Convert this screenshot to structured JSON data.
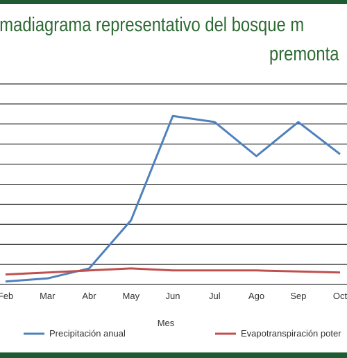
{
  "title": {
    "line1": "imadiagrama representativo del bosque m",
    "line2": "premonta"
  },
  "chart_data": {
    "type": "line",
    "categories": [
      "Feb",
      "Mar",
      "Abr",
      "May",
      "Jun",
      "Jul",
      "Ago",
      "Sep",
      "Oct"
    ],
    "xlabel": "Mes",
    "ylabel": "",
    "ylim": [
      0,
      10
    ],
    "grid": true,
    "legend_position": "bottom",
    "series": [
      {
        "name": "Precipitación anual",
        "color": "#4f81bd",
        "values": [
          0.15,
          0.3,
          0.8,
          3.2,
          8.4,
          8.1,
          6.4,
          8.1,
          6.5
        ]
      },
      {
        "name": "Evapotranspiración poter",
        "color": "#c0504d",
        "values": [
          0.5,
          0.6,
          0.7,
          0.8,
          0.7,
          0.7,
          0.7,
          0.65,
          0.6
        ]
      }
    ]
  },
  "colors": {
    "band": "#1e5a32",
    "title": "#2e6b34",
    "grid": "#000000"
  }
}
